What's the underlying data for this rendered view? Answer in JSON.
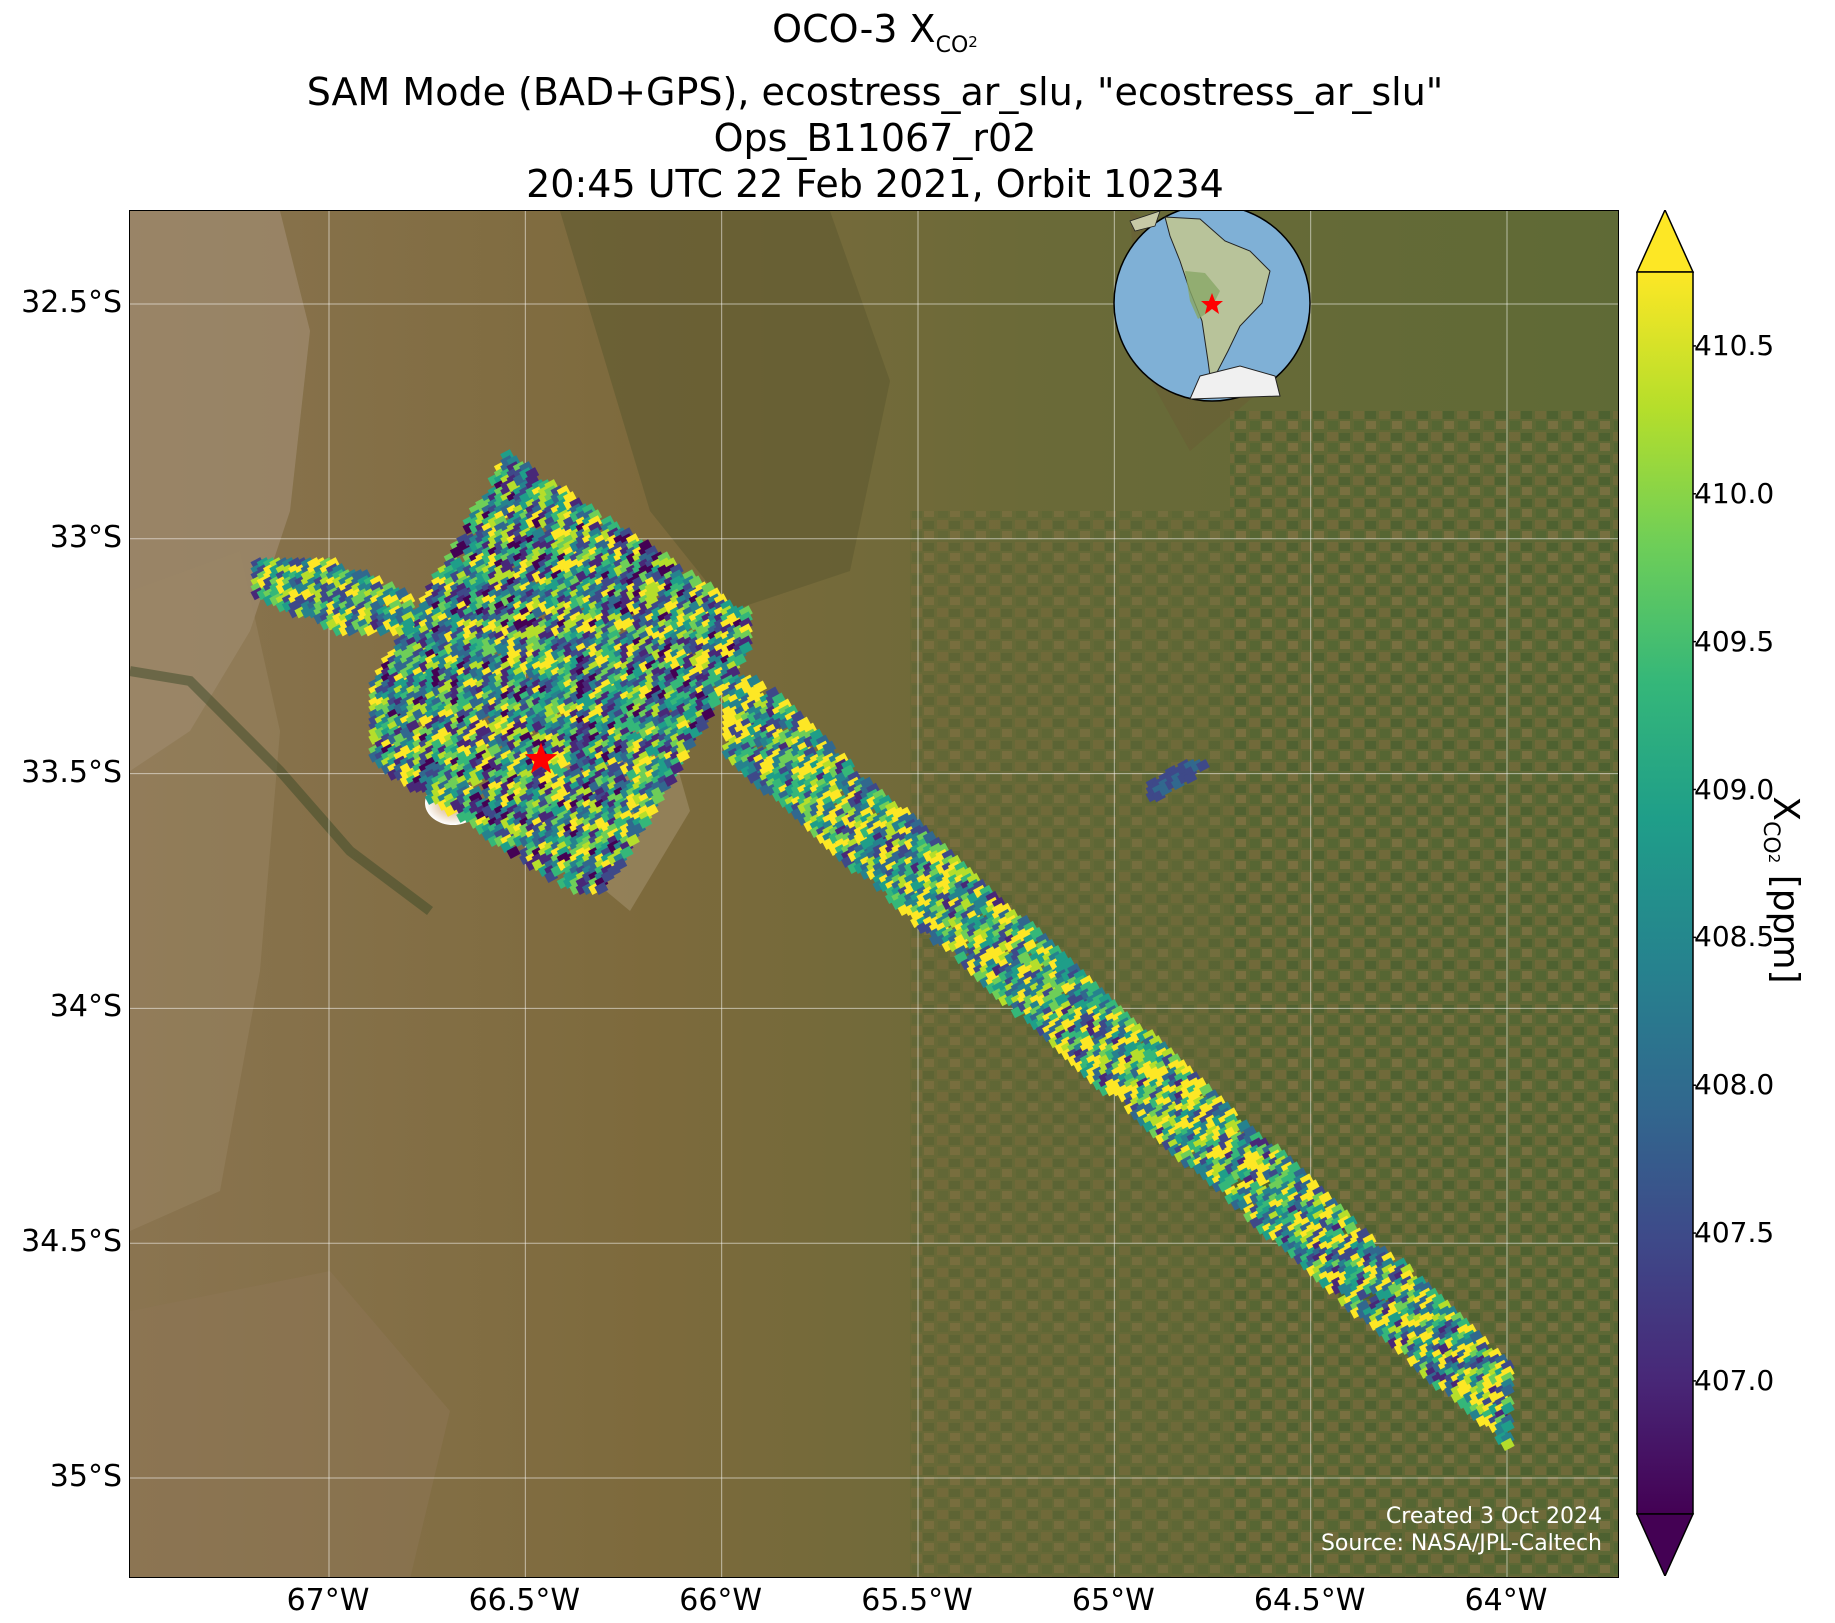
{
  "title": {
    "line1_prefix": "OCO-3 X",
    "line1_sub": "CO",
    "line1_subsub": "2",
    "line2": "SAM Mode (BAD+GPS), ecostress_ar_slu, \"ecostress_ar_slu\"",
    "line3": "Ops_B11067_r02",
    "line4": "20:45 UTC 22 Feb 2021, Orbit 10234"
  },
  "axes": {
    "lat_ticks": [
      "32.5°S",
      "33°S",
      "33.5°S",
      "34°S",
      "34.5°S",
      "35°S"
    ],
    "lat_values": [
      -32.5,
      -33.0,
      -33.5,
      -34.0,
      -34.5,
      -35.0
    ],
    "lon_ticks": [
      "67°W",
      "66.5°W",
      "66°W",
      "65.5°W",
      "65°W",
      "64.5°W",
      "64°W"
    ],
    "lon_values": [
      -67.0,
      -66.5,
      -66.0,
      -65.5,
      -65.0,
      -64.5,
      -64.0
    ],
    "lon_range": [
      -67.5,
      -63.7
    ],
    "lat_range": [
      -35.2,
      -32.3
    ],
    "grid": true
  },
  "target": {
    "marker": "red-star",
    "lon": -66.46,
    "lat": -33.47
  },
  "credit": {
    "line1": "Created 3 Oct 2024",
    "line2": "Source: NASA/JPL-Caltech"
  },
  "inset": {
    "type": "orthographic-globe",
    "content": "South America",
    "marker": "red-star"
  },
  "colorbar": {
    "label_prefix": "X",
    "label_sub": "CO",
    "label_subsub": "2",
    "label_suffix": " [ppm]",
    "ticks": [
      "410.5",
      "410.0",
      "409.5",
      "409.0",
      "408.5",
      "408.0",
      "407.5",
      "407.0"
    ],
    "tick_values": [
      410.5,
      410.0,
      409.5,
      409.0,
      408.5,
      408.0,
      407.5,
      407.0
    ],
    "vmin": 406.55,
    "vmax": 410.75,
    "colormap": "viridis",
    "extend": "both",
    "colors": [
      "#440154",
      "#482878",
      "#3e4989",
      "#31688e",
      "#26828e",
      "#1f9e89",
      "#35b779",
      "#6ece58",
      "#b5de2b",
      "#fde725"
    ]
  },
  "chart_data": {
    "type": "heatmap",
    "title": "OCO-3 XCO2",
    "xlabel": "",
    "ylabel": "",
    "colorbar_label": "XCO2 [ppm]",
    "swaths": [
      {
        "name": "SAM cluster west",
        "lon_range": [
          -66.9,
          -65.95
        ],
        "lat_range": [
          -33.75,
          -32.5
        ],
        "xco2_range": [
          406.6,
          410.7
        ],
        "mean_xco2": 408.8
      },
      {
        "name": "western fragment",
        "lon_range": [
          -67.2,
          -66.8
        ],
        "lat_range": [
          -33.2,
          -33.05
        ],
        "xco2_range": [
          407.0,
          410.7
        ],
        "mean_xco2": 409.2
      },
      {
        "name": "long diagonal swath",
        "lon_range": [
          -66.0,
          -64.0
        ],
        "lat_range": [
          -34.95,
          -33.3
        ],
        "xco2_range": [
          406.6,
          410.7
        ],
        "mean_xco2": 409.3
      },
      {
        "name": "small fragment",
        "lon_range": [
          -64.92,
          -64.78
        ],
        "lat_range": [
          -33.55,
          -33.48
        ],
        "xco2_range": [
          407.4,
          408.0
        ],
        "mean_xco2": 407.7
      }
    ]
  }
}
